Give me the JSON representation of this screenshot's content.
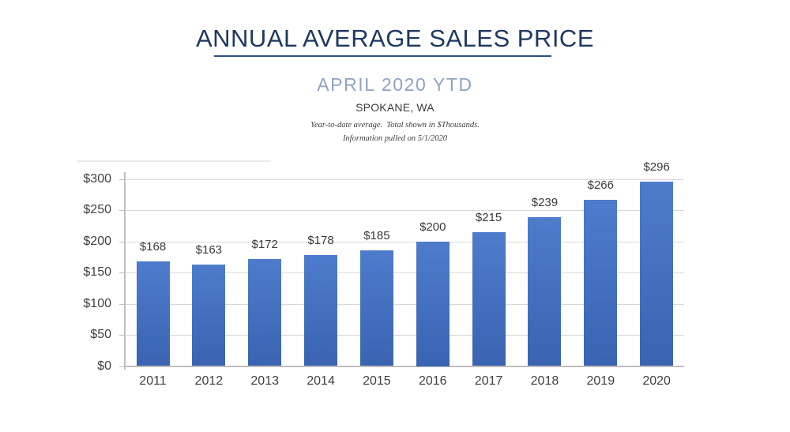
{
  "title": "ANNUAL AVERAGE SALES PRICE",
  "subtitle": "APRIL 2020 YTD",
  "location": "SPOKANE, WA",
  "note_line1": "Year-to-date average.  Total shown in $Thousands.",
  "note_line2": "Information pulled on 5/1/2020",
  "colors": {
    "title": "#1F3864",
    "underline": "#2E4E86",
    "subtitle": "#8EA3C2",
    "location": "#3D3D3D",
    "note": "#3D3D3D",
    "axis_line": "#BFBFBF",
    "gridline": "#D9D9D9",
    "faint_top_line": "#EBEBEB",
    "tick_label": "#404040",
    "bar_label": "#3B3B3B",
    "bar_gradient_top": "#4E7BCB",
    "bar_gradient_bottom": "#3A64B2"
  },
  "chart_data": {
    "type": "bar",
    "title": "ANNUAL AVERAGE SALES PRICE",
    "subtitle": "APRIL 2020 YTD",
    "categories": [
      "2011",
      "2012",
      "2013",
      "2014",
      "2015",
      "2016",
      "2017",
      "2018",
      "2019",
      "2020"
    ],
    "values": [
      168,
      163,
      172,
      178,
      185,
      200,
      215,
      239,
      266,
      296
    ],
    "value_labels": [
      "$168",
      "$163",
      "$172",
      "$178",
      "$185",
      "$200",
      "$215",
      "$239",
      "$266",
      "$296"
    ],
    "y_tick_labels": [
      "$0",
      "$50",
      "$100",
      "$150",
      "$200",
      "$250",
      "$300"
    ],
    "y_ticks": [
      0,
      50,
      100,
      150,
      200,
      250,
      300
    ],
    "ylim": [
      0,
      300
    ],
    "xlabel": "",
    "ylabel": "",
    "grid": true,
    "legend": false
  }
}
